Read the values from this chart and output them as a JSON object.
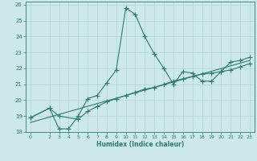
{
  "xlabel": "Humidex (Indice chaleur)",
  "bg_color": "#cce8e8",
  "line_color": "#2d7a6e",
  "grid_color": "#b0d4d0",
  "xlim": [
    -0.5,
    23.5
  ],
  "ylim": [
    18,
    26.2
  ],
  "xtick_labels": [
    "0",
    "2",
    "3",
    "4",
    "5",
    "6",
    "7",
    "8",
    "9",
    "10",
    "11",
    "12",
    "13",
    "14",
    "15",
    "16",
    "17",
    "18",
    "19",
    "20",
    "21",
    "22",
    "23"
  ],
  "xtick_vals": [
    0,
    2,
    3,
    4,
    5,
    6,
    7,
    8,
    9,
    10,
    11,
    12,
    13,
    14,
    15,
    16,
    17,
    18,
    19,
    20,
    21,
    22,
    23
  ],
  "ytick_vals": [
    18,
    19,
    20,
    21,
    22,
    23,
    24,
    25,
    26
  ],
  "line1_x": [
    0,
    2,
    3,
    4,
    5,
    6,
    7,
    8,
    9,
    10,
    11,
    12,
    13,
    14,
    15,
    16,
    17,
    18,
    19,
    20,
    21,
    22,
    23
  ],
  "line1_y": [
    18.9,
    19.5,
    18.2,
    18.2,
    19.0,
    20.1,
    20.3,
    21.1,
    21.9,
    25.8,
    25.4,
    24.0,
    22.9,
    22.0,
    21.0,
    21.8,
    21.7,
    21.2,
    21.2,
    21.8,
    22.4,
    22.5,
    22.7
  ],
  "line2_x": [
    0,
    2,
    3,
    5,
    6,
    7,
    8,
    9,
    10,
    11,
    12,
    13,
    14,
    15,
    16,
    17,
    18,
    19,
    20,
    21,
    22,
    23
  ],
  "line2_y": [
    18.9,
    19.5,
    19.0,
    18.8,
    19.3,
    19.6,
    19.9,
    20.1,
    20.3,
    20.5,
    20.7,
    20.8,
    21.0,
    21.2,
    21.35,
    21.5,
    21.65,
    21.7,
    21.8,
    21.9,
    22.1,
    22.3
  ],
  "line3_x": [
    0,
    23
  ],
  "line3_y": [
    18.6,
    22.5
  ]
}
